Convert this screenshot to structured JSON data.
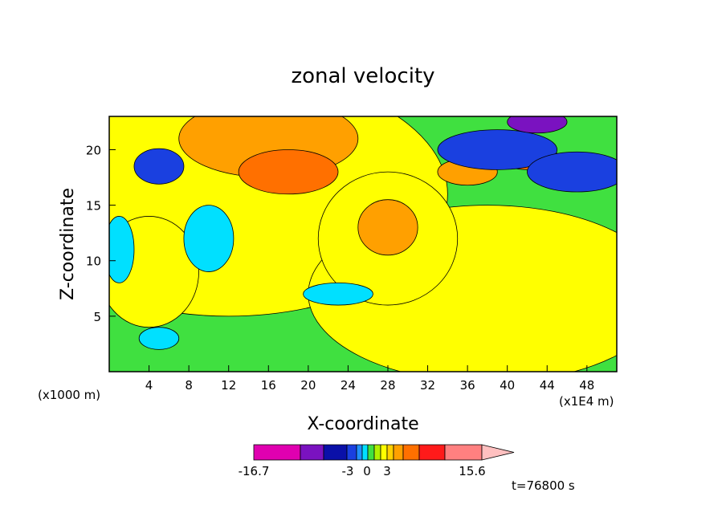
{
  "chart_data": {
    "type": "heatmap",
    "title": "zonal velocity",
    "xlabel": "X-coordinate",
    "ylabel": "Z-coordinate",
    "x_unit": "(x1000 m)",
    "x_unit_right": "(x1E4 m)",
    "x_ticks": [
      "4",
      "8",
      "12",
      "16",
      "20",
      "24",
      "28",
      "32",
      "36",
      "40",
      "44",
      "48"
    ],
    "y_ticks": [
      "5",
      "10",
      "15",
      "20"
    ],
    "xlim": [
      0,
      51
    ],
    "ylim": [
      0,
      23
    ],
    "time_label": "t=76800 s",
    "colorbar": {
      "colors": [
        "#e000b0",
        "#7a12c0",
        "#0a10a8",
        "#1a40e0",
        "#2090ff",
        "#00e0ff",
        "#40e040",
        "#b0f000",
        "#ffff00",
        "#ffd000",
        "#ffa000",
        "#ff7000",
        "#ff1a1a",
        "#ff8080",
        "#ffc0c0"
      ],
      "labels": [
        "-16.7",
        "-3",
        "0",
        "3",
        "15.6"
      ],
      "min": -16.7,
      "max": 15.6
    },
    "blobs": [
      {
        "cx": 12,
        "cy": 16,
        "rx": 22,
        "ry": 11,
        "c": 8
      },
      {
        "cx": 38,
        "cy": 7,
        "rx": 18,
        "ry": 8,
        "c": 8
      },
      {
        "cx": 4,
        "cy": 9,
        "rx": 5,
        "ry": 5,
        "c": 8
      },
      {
        "cx": 28,
        "cy": 12,
        "rx": 7,
        "ry": 6,
        "c": 8
      },
      {
        "cx": 16,
        "cy": 21,
        "rx": 9,
        "ry": 3.5,
        "c": 10
      },
      {
        "cx": 18,
        "cy": 18,
        "rx": 5,
        "ry": 2,
        "c": 11
      },
      {
        "cx": 28,
        "cy": 13,
        "rx": 3,
        "ry": 2.5,
        "c": 10
      },
      {
        "cx": 42,
        "cy": 19.5,
        "rx": 3,
        "ry": 1.3,
        "c": 11
      },
      {
        "cx": 36,
        "cy": 18,
        "rx": 3,
        "ry": 1.2,
        "c": 10
      },
      {
        "cx": 5,
        "cy": 18.5,
        "rx": 2.5,
        "ry": 1.6,
        "c": 3
      },
      {
        "cx": 39,
        "cy": 20,
        "rx": 6,
        "ry": 1.8,
        "c": 3
      },
      {
        "cx": 47,
        "cy": 18,
        "rx": 5,
        "ry": 1.8,
        "c": 3
      },
      {
        "cx": 43,
        "cy": 22.5,
        "rx": 3,
        "ry": 1,
        "c": 1
      },
      {
        "cx": 10,
        "cy": 12,
        "rx": 2.5,
        "ry": 3,
        "c": 5
      },
      {
        "cx": 23,
        "cy": 7,
        "rx": 3.5,
        "ry": 1,
        "c": 5
      },
      {
        "cx": 1,
        "cy": 11,
        "rx": 1.5,
        "ry": 3,
        "c": 5
      },
      {
        "cx": 5,
        "cy": 3,
        "rx": 2,
        "ry": 1,
        "c": 5
      }
    ]
  }
}
